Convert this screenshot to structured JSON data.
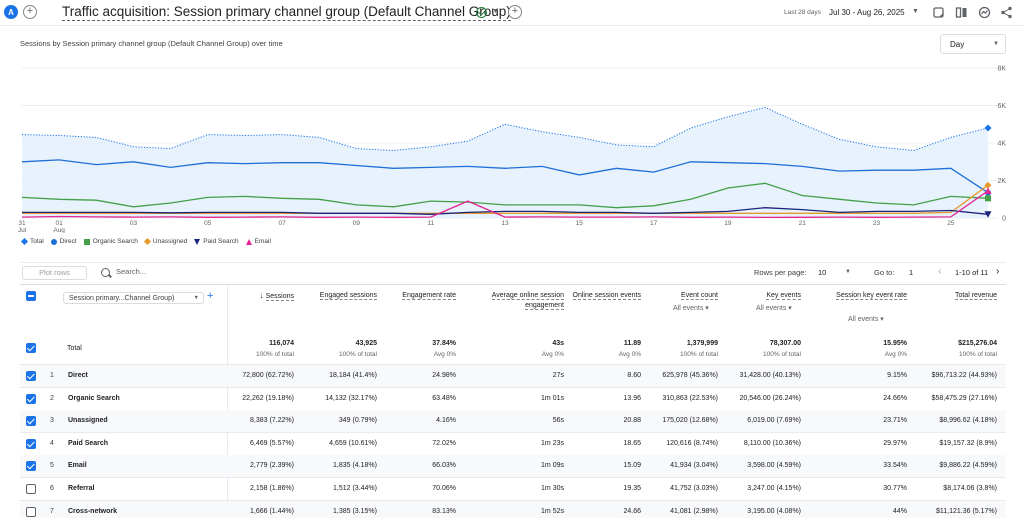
{
  "header": {
    "avatar_letter": "A",
    "title": "Traffic acquisition: Session primary channel group (Default Channel Group)",
    "date_label": "Last 28 days",
    "date_range": "Jul 30 - Aug 26, 2025",
    "icons": [
      "report-icon",
      "compare-icon",
      "insights-icon",
      "share-icon"
    ]
  },
  "chart": {
    "title": "Sessions by Session primary channel group (Default Channel Group) over time",
    "interval": "Day"
  },
  "chart_data": {
    "type": "line",
    "x": [
      "31 Jul",
      "01 Aug",
      "02",
      "03",
      "04",
      "05",
      "06",
      "07",
      "08",
      "09",
      "10",
      "11",
      "12",
      "13",
      "14",
      "15",
      "16",
      "17",
      "18",
      "19",
      "20",
      "21",
      "22",
      "23",
      "24",
      "25",
      "26"
    ],
    "x_tick_labels": [
      {
        "i": 0,
        "label": "31",
        "sub": "Jul"
      },
      {
        "i": 1,
        "label": "01",
        "sub": "Aug"
      },
      {
        "i": 3,
        "label": "03"
      },
      {
        "i": 5,
        "label": "05"
      },
      {
        "i": 7,
        "label": "07"
      },
      {
        "i": 9,
        "label": "09"
      },
      {
        "i": 11,
        "label": "11"
      },
      {
        "i": 13,
        "label": "13"
      },
      {
        "i": 15,
        "label": "15"
      },
      {
        "i": 17,
        "label": "17"
      },
      {
        "i": 19,
        "label": "19"
      },
      {
        "i": 21,
        "label": "21"
      },
      {
        "i": 23,
        "label": "23"
      },
      {
        "i": 25,
        "label": "25"
      }
    ],
    "y_ticks": [
      "0",
      "2K",
      "4K",
      "6K",
      "8K"
    ],
    "ylim": [
      0,
      8000
    ],
    "grid": true,
    "legend_position": "bottom-left",
    "series": [
      {
        "name": "Total",
        "color": "#1a73e8",
        "style": "dotted-area",
        "marker": "diamond",
        "values": [
          4450,
          4400,
          4300,
          3800,
          3700,
          4450,
          4400,
          4450,
          4300,
          3700,
          3600,
          3800,
          4100,
          5000,
          4600,
          4300,
          3900,
          3800,
          4800,
          5400,
          5900,
          5000,
          4200,
          3800,
          3600,
          4300,
          4800
        ]
      },
      {
        "name": "Direct",
        "color": "#1f6fd6",
        "style": "line",
        "marker": "circle",
        "values": [
          3000,
          3100,
          2850,
          3000,
          2700,
          2950,
          2900,
          2950,
          2950,
          2800,
          2650,
          2700,
          2750,
          2650,
          2750,
          2300,
          2650,
          2450,
          3000,
          2950,
          2900,
          2750,
          2500,
          2550,
          2550,
          2650,
          1350
        ]
      },
      {
        "name": "Organic Search",
        "color": "#43a047",
        "style": "line",
        "marker": "square",
        "values": [
          1100,
          1000,
          950,
          600,
          800,
          1100,
          1150,
          1050,
          1000,
          700,
          600,
          900,
          850,
          700,
          700,
          700,
          550,
          650,
          1000,
          1600,
          1850,
          1200,
          1000,
          800,
          700,
          1150,
          1050
        ]
      },
      {
        "name": "Unassigned",
        "color": "#e69a2b",
        "style": "line",
        "marker": "diamond",
        "values": [
          250,
          250,
          250,
          250,
          250,
          250,
          250,
          250,
          250,
          250,
          250,
          250,
          250,
          250,
          250,
          250,
          250,
          250,
          250,
          250,
          250,
          250,
          250,
          250,
          250,
          300,
          1750
        ]
      },
      {
        "name": "Paid Search",
        "color": "#1a237e",
        "style": "line",
        "marker": "triangle-down",
        "values": [
          300,
          300,
          300,
          300,
          280,
          300,
          300,
          300,
          250,
          250,
          250,
          200,
          300,
          350,
          350,
          300,
          300,
          250,
          300,
          350,
          550,
          450,
          300,
          350,
          350,
          400,
          200
        ]
      },
      {
        "name": "Email",
        "color": "#e52592",
        "style": "line",
        "marker": "triangle",
        "values": [
          50,
          80,
          60,
          50,
          60,
          40,
          50,
          60,
          40,
          50,
          40,
          50,
          900,
          50,
          60,
          50,
          50,
          60,
          40,
          50,
          30,
          40,
          50,
          40,
          50,
          60,
          1450
        ]
      }
    ]
  },
  "toolbar": {
    "plot_rows_label": "Plot rows",
    "search_placeholder": "Search...",
    "rows_per_page_label": "Rows per page:",
    "rows_per_page_value": "10",
    "goto_label": "Go to:",
    "goto_value": "1",
    "page_info": "1-10 of 11"
  },
  "table": {
    "dimension_label": "Session primary...Channel Group)",
    "columns": [
      {
        "id": "sessions",
        "label": "Sessions",
        "sorted": true
      },
      {
        "id": "engaged",
        "label": "Engaged sessions"
      },
      {
        "id": "engrate",
        "label": "Engagement rate"
      },
      {
        "id": "avgeng",
        "label": "Average online session engagement"
      },
      {
        "id": "onlineev",
        "label": "Online session events"
      },
      {
        "id": "events",
        "label": "Event count",
        "sub": "All events"
      },
      {
        "id": "keyev",
        "label": "Key events",
        "sub": "All events"
      },
      {
        "id": "skrate",
        "label": "Session key event rate",
        "sub": "All events"
      },
      {
        "id": "revenue",
        "label": "Total revenue"
      }
    ],
    "total": {
      "label": "Total",
      "values": [
        "116,074",
        "43,925",
        "37.84%",
        "43s",
        "11.89",
        "1,379,999",
        "78,307.00",
        "15.95%",
        "$215,276.04"
      ],
      "subs": [
        "100% of total",
        "100% of total",
        "Avg 0%",
        "Avg 0%",
        "Avg 0%",
        "100% of total",
        "100% of total",
        "Avg 0%",
        "100% of total"
      ]
    },
    "rows": [
      {
        "n": "1",
        "name": "Direct",
        "checked": true,
        "values": [
          "72,800 (62.72%)",
          "18,184 (41.4%)",
          "24.98%",
          "27s",
          "8.60",
          "625,978 (45.36%)",
          "31,428.00 (40.13%)",
          "9.15%",
          "$96,713.22 (44.93%)"
        ]
      },
      {
        "n": "2",
        "name": "Organic Search",
        "checked": true,
        "values": [
          "22,262 (19.18%)",
          "14,132 (32.17%)",
          "63.48%",
          "1m 01s",
          "13.96",
          "310,863 (22.53%)",
          "20,546.00 (26.24%)",
          "24.66%",
          "$58,475.29 (27.16%)"
        ]
      },
      {
        "n": "3",
        "name": "Unassigned",
        "checked": true,
        "values": [
          "8,383 (7.22%)",
          "349 (0.79%)",
          "4.16%",
          "56s",
          "20.88",
          "175,020 (12.68%)",
          "6,019.00 (7.69%)",
          "23.71%",
          "$8,996.62 (4.18%)"
        ]
      },
      {
        "n": "4",
        "name": "Paid Search",
        "checked": true,
        "values": [
          "6,469 (5.57%)",
          "4,659 (10.61%)",
          "72.02%",
          "1m 23s",
          "18.65",
          "120,616 (8.74%)",
          "8,110.00 (10.36%)",
          "29.97%",
          "$19,157.32 (8.9%)"
        ]
      },
      {
        "n": "5",
        "name": "Email",
        "checked": true,
        "values": [
          "2,779 (2.39%)",
          "1,835 (4.18%)",
          "66.03%",
          "1m 09s",
          "15.09",
          "41,934 (3.04%)",
          "3,598.00 (4.59%)",
          "33.54%",
          "$9,886.22 (4.59%)"
        ]
      },
      {
        "n": "6",
        "name": "Referral",
        "checked": false,
        "values": [
          "2,158 (1.86%)",
          "1,512 (3.44%)",
          "70.06%",
          "1m 30s",
          "19.35",
          "41,752 (3.03%)",
          "3,247.00 (4.15%)",
          "30.77%",
          "$8,174.06 (3.8%)"
        ]
      },
      {
        "n": "7",
        "name": "Cross-network",
        "checked": false,
        "values": [
          "1,666 (1.44%)",
          "1,385 (3.15%)",
          "83.13%",
          "1m 52s",
          "24.66",
          "41,081 (2.98%)",
          "3,195.00 (4.08%)",
          "44%",
          "$11,121.36 (5.17%)"
        ]
      }
    ]
  }
}
